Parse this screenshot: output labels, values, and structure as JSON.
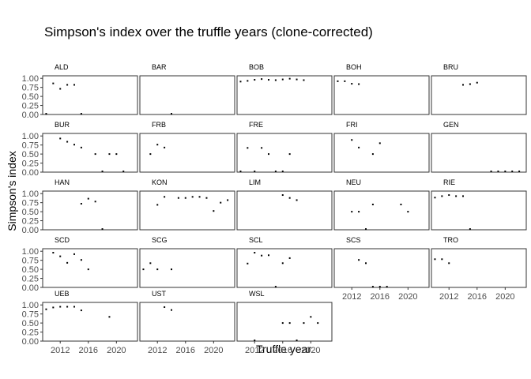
{
  "chart_data": {
    "type": "scatter",
    "title": "Simpson's index over the truffle years (clone-corrected)",
    "xlabel": "Truffle year",
    "ylabel": "Simpson's index",
    "xlim": [
      2009.5,
      2023
    ],
    "ylim": [
      0,
      1.07
    ],
    "x_ticks": [
      2012,
      2016,
      2020
    ],
    "x_tick_labels": [
      "2012",
      "2016",
      "2020"
    ],
    "y_ticks": [
      0,
      0.25,
      0.5,
      0.75,
      1
    ],
    "y_tick_labels": [
      "0.00",
      "0.25",
      "0.50",
      "0.75",
      "1.00"
    ],
    "grid": false,
    "facets": [
      {
        "name": "ALD",
        "points": [
          [
            2010,
            0.02
          ],
          [
            2011,
            0.86
          ],
          [
            2012,
            0.71
          ],
          [
            2013,
            0.82
          ],
          [
            2014,
            0.82
          ],
          [
            2015,
            0.02
          ]
        ]
      },
      {
        "name": "BAR",
        "points": [
          [
            2014,
            0.02
          ]
        ]
      },
      {
        "name": "BOB",
        "points": [
          [
            2010,
            0.91
          ],
          [
            2011,
            0.93
          ],
          [
            2012,
            0.96
          ],
          [
            2013,
            0.98
          ],
          [
            2014,
            0.96
          ],
          [
            2015,
            0.95
          ],
          [
            2016,
            0.97
          ],
          [
            2017,
            0.99
          ],
          [
            2018,
            0.97
          ],
          [
            2019,
            0.95
          ]
        ]
      },
      {
        "name": "BOH",
        "points": [
          [
            2010,
            0.92
          ],
          [
            2011,
            0.92
          ],
          [
            2012,
            0.85
          ],
          [
            2013,
            0.84
          ]
        ]
      },
      {
        "name": "BRU",
        "points": [
          [
            2014,
            0.82
          ],
          [
            2015,
            0.84
          ],
          [
            2016,
            0.88
          ]
        ]
      },
      {
        "name": "BUR",
        "points": [
          [
            2012,
            0.93
          ],
          [
            2013,
            0.84
          ],
          [
            2014,
            0.76
          ],
          [
            2015,
            0.68
          ],
          [
            2017,
            0.5
          ],
          [
            2018,
            0.02
          ],
          [
            2019,
            0.5
          ],
          [
            2020,
            0.5
          ],
          [
            2021,
            0.02
          ]
        ]
      },
      {
        "name": "FRB",
        "points": [
          [
            2011,
            0.5
          ],
          [
            2012,
            0.76
          ],
          [
            2013,
            0.68
          ]
        ]
      },
      {
        "name": "FRE",
        "points": [
          [
            2010,
            0.02
          ],
          [
            2011,
            0.67
          ],
          [
            2012,
            0.02
          ],
          [
            2013,
            0.67
          ],
          [
            2014,
            0.5
          ],
          [
            2015,
            0.02
          ],
          [
            2016,
            0.02
          ],
          [
            2017,
            0.5
          ]
        ]
      },
      {
        "name": "FRI",
        "points": [
          [
            2012,
            0.89
          ],
          [
            2013,
            0.68
          ],
          [
            2015,
            0.5
          ],
          [
            2016,
            0.8
          ]
        ]
      },
      {
        "name": "GEN",
        "points": [
          [
            2018,
            0.02
          ],
          [
            2019,
            0.02
          ],
          [
            2020,
            0.02
          ],
          [
            2021,
            0.02
          ],
          [
            2022,
            0.02
          ]
        ]
      },
      {
        "name": "HAN",
        "points": [
          [
            2015,
            0.72
          ],
          [
            2016,
            0.86
          ],
          [
            2017,
            0.78
          ],
          [
            2018,
            0.02
          ]
        ]
      },
      {
        "name": "KON",
        "points": [
          [
            2012,
            0.69
          ],
          [
            2013,
            0.91
          ],
          [
            2015,
            0.88
          ],
          [
            2016,
            0.88
          ],
          [
            2017,
            0.91
          ],
          [
            2018,
            0.91
          ],
          [
            2019,
            0.88
          ],
          [
            2020,
            0.52
          ],
          [
            2021,
            0.75
          ],
          [
            2022,
            0.82
          ]
        ]
      },
      {
        "name": "LIM",
        "points": [
          [
            2016,
            0.96
          ],
          [
            2017,
            0.88
          ],
          [
            2018,
            0.82
          ]
        ]
      },
      {
        "name": "NEU",
        "points": [
          [
            2012,
            0.5
          ],
          [
            2013,
            0.5
          ],
          [
            2014,
            0.02
          ],
          [
            2015,
            0.7
          ],
          [
            2019,
            0.7
          ],
          [
            2020,
            0.5
          ]
        ]
      },
      {
        "name": "RIE",
        "points": [
          [
            2010,
            0.89
          ],
          [
            2011,
            0.93
          ],
          [
            2012,
            0.96
          ],
          [
            2013,
            0.93
          ],
          [
            2014,
            0.93
          ],
          [
            2015,
            0.02
          ]
        ]
      },
      {
        "name": "SCD",
        "points": [
          [
            2011,
            0.96
          ],
          [
            2012,
            0.86
          ],
          [
            2013,
            0.68
          ],
          [
            2014,
            0.92
          ],
          [
            2015,
            0.76
          ],
          [
            2016,
            0.5
          ]
        ]
      },
      {
        "name": "SCG",
        "points": [
          [
            2010,
            0.5
          ],
          [
            2011,
            0.67
          ],
          [
            2012,
            0.5
          ],
          [
            2014,
            0.5
          ]
        ]
      },
      {
        "name": "SCL",
        "points": [
          [
            2011,
            0.66
          ],
          [
            2012,
            0.96
          ],
          [
            2013,
            0.88
          ],
          [
            2014,
            0.89
          ],
          [
            2015,
            0.02
          ],
          [
            2016,
            0.67
          ],
          [
            2017,
            0.81
          ]
        ]
      },
      {
        "name": "SCS",
        "points": [
          [
            2013,
            0.76
          ],
          [
            2014,
            0.67
          ],
          [
            2015,
            0.02
          ],
          [
            2016,
            0.02
          ],
          [
            2017,
            0.02
          ]
        ]
      },
      {
        "name": "TRO",
        "points": [
          [
            2010,
            0.78
          ],
          [
            2011,
            0.78
          ],
          [
            2012,
            0.67
          ]
        ]
      },
      {
        "name": "UEB",
        "points": [
          [
            2010,
            0.88
          ],
          [
            2011,
            0.93
          ],
          [
            2012,
            0.95
          ],
          [
            2013,
            0.95
          ],
          [
            2014,
            0.95
          ],
          [
            2015,
            0.85
          ],
          [
            2019,
            0.67
          ]
        ]
      },
      {
        "name": "UST",
        "points": [
          [
            2013,
            0.94
          ],
          [
            2014,
            0.86
          ]
        ]
      },
      {
        "name": "WSL",
        "points": [
          [
            2012,
            0.02
          ],
          [
            2016,
            0.5
          ],
          [
            2017,
            0.5
          ],
          [
            2018,
            0.02
          ],
          [
            2019,
            0.5
          ],
          [
            2020,
            0.67
          ],
          [
            2021,
            0.5
          ]
        ]
      }
    ]
  }
}
